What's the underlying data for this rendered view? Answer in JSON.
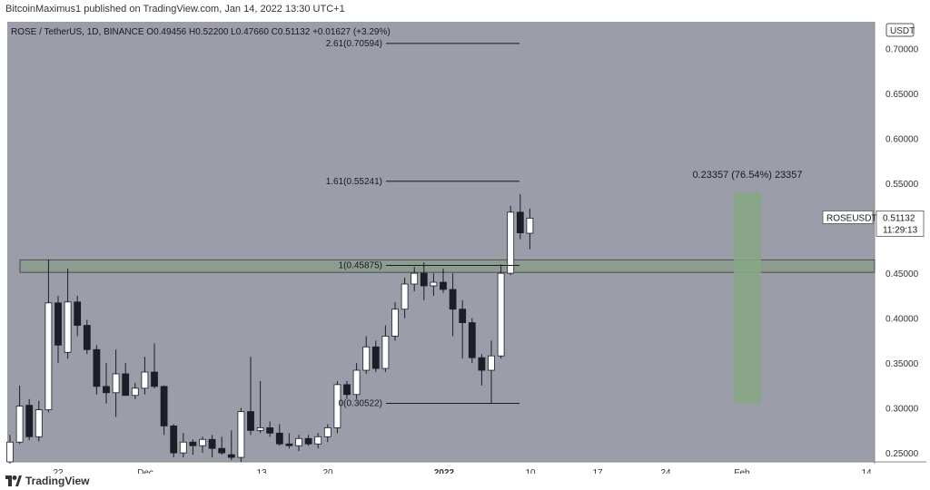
{
  "header": {
    "publisher_line": "BitcoinMaximus1 published on TradingView.com, Jan 14, 2022 13:30 UTC+1"
  },
  "footer": {
    "brand": "TradingView",
    "logo_icon": "tradingview-logo-icon"
  },
  "colors": {
    "background": "#9b9da8",
    "up": "#ffffff",
    "down": "#1b1d27",
    "zone": "#7f9a7c",
    "box": "#86a983"
  },
  "chart_data": {
    "type": "candlestick",
    "symbol_line": {
      "symbol": "ROSE / TetherUS, 1D, BINANCE",
      "o_label": "O",
      "o": "0.49456",
      "h_label": "H",
      "h": "0.52200",
      "l_label": "L",
      "l": "0.47660",
      "c_label": "C",
      "c": "0.51132",
      "change": "+0.01627 (+3.29%)"
    },
    "currency": "USDT",
    "ylim": [
      0.24,
      0.73
    ],
    "y_ticks": [
      "0.70000",
      "0.65000",
      "0.60000",
      "0.55000",
      "0.50000",
      "0.45000",
      "0.40000",
      "0.35000",
      "0.30000",
      "0.25000"
    ],
    "x_ticks": [
      "22",
      "Dec",
      "13",
      "20",
      "2022",
      "10",
      "17",
      "24",
      "Feb",
      "14"
    ],
    "last_price": {
      "label": "ROSEUSDT",
      "value": "0.51132",
      "timer": "11:29:13"
    },
    "fib_levels": [
      {
        "label": "2.61(0.70594)",
        "value": 0.70594
      },
      {
        "label": "1.61(0.55241)",
        "value": 0.55241
      },
      {
        "label": "1(0.45875)",
        "value": 0.45875
      },
      {
        "label": "0(0.30522)",
        "value": 0.30522
      }
    ],
    "resistance_zone": [
      0.451,
      0.465
    ],
    "measure": {
      "label": "0.23357 (76.54%) 23357",
      "low": 0.305,
      "high": 0.54
    },
    "candles": [
      {
        "o": 0.24,
        "h": 0.27,
        "l": 0.238,
        "c": 0.262
      },
      {
        "o": 0.262,
        "h": 0.325,
        "l": 0.26,
        "c": 0.302
      },
      {
        "o": 0.303,
        "h": 0.31,
        "l": 0.264,
        "c": 0.268
      },
      {
        "o": 0.268,
        "h": 0.308,
        "l": 0.263,
        "c": 0.298
      },
      {
        "o": 0.298,
        "h": 0.465,
        "l": 0.295,
        "c": 0.417
      },
      {
        "o": 0.417,
        "h": 0.425,
        "l": 0.35,
        "c": 0.37
      },
      {
        "o": 0.362,
        "h": 0.455,
        "l": 0.355,
        "c": 0.418
      },
      {
        "o": 0.418,
        "h": 0.425,
        "l": 0.38,
        "c": 0.392
      },
      {
        "o": 0.392,
        "h": 0.398,
        "l": 0.36,
        "c": 0.365
      },
      {
        "o": 0.365,
        "h": 0.37,
        "l": 0.315,
        "c": 0.324
      },
      {
        "o": 0.324,
        "h": 0.35,
        "l": 0.305,
        "c": 0.317
      },
      {
        "o": 0.317,
        "h": 0.365,
        "l": 0.29,
        "c": 0.338
      },
      {
        "o": 0.338,
        "h": 0.35,
        "l": 0.315,
        "c": 0.314
      },
      {
        "o": 0.314,
        "h": 0.328,
        "l": 0.31,
        "c": 0.322
      },
      {
        "o": 0.322,
        "h": 0.357,
        "l": 0.315,
        "c": 0.34
      },
      {
        "o": 0.34,
        "h": 0.372,
        "l": 0.322,
        "c": 0.324
      },
      {
        "o": 0.324,
        "h": 0.325,
        "l": 0.27,
        "c": 0.28
      },
      {
        "o": 0.28,
        "h": 0.282,
        "l": 0.245,
        "c": 0.25
      },
      {
        "o": 0.25,
        "h": 0.272,
        "l": 0.245,
        "c": 0.262
      },
      {
        "o": 0.262,
        "h": 0.265,
        "l": 0.248,
        "c": 0.258
      },
      {
        "o": 0.258,
        "h": 0.268,
        "l": 0.25,
        "c": 0.265
      },
      {
        "o": 0.265,
        "h": 0.27,
        "l": 0.245,
        "c": 0.255
      },
      {
        "o": 0.255,
        "h": 0.268,
        "l": 0.248,
        "c": 0.25
      },
      {
        "o": 0.248,
        "h": 0.275,
        "l": 0.242,
        "c": 0.245
      },
      {
        "o": 0.245,
        "h": 0.3,
        "l": 0.24,
        "c": 0.296
      },
      {
        "o": 0.296,
        "h": 0.357,
        "l": 0.27,
        "c": 0.275
      },
      {
        "o": 0.275,
        "h": 0.33,
        "l": 0.272,
        "c": 0.278
      },
      {
        "o": 0.278,
        "h": 0.285,
        "l": 0.268,
        "c": 0.272
      },
      {
        "o": 0.272,
        "h": 0.282,
        "l": 0.258,
        "c": 0.26
      },
      {
        "o": 0.26,
        "h": 0.272,
        "l": 0.255,
        "c": 0.258
      },
      {
        "o": 0.258,
        "h": 0.27,
        "l": 0.252,
        "c": 0.266
      },
      {
        "o": 0.266,
        "h": 0.27,
        "l": 0.258,
        "c": 0.26
      },
      {
        "o": 0.26,
        "h": 0.272,
        "l": 0.255,
        "c": 0.268
      },
      {
        "o": 0.268,
        "h": 0.282,
        "l": 0.262,
        "c": 0.278
      },
      {
        "o": 0.278,
        "h": 0.33,
        "l": 0.272,
        "c": 0.326
      },
      {
        "o": 0.326,
        "h": 0.33,
        "l": 0.31,
        "c": 0.315
      },
      {
        "o": 0.315,
        "h": 0.35,
        "l": 0.31,
        "c": 0.342
      },
      {
        "o": 0.342,
        "h": 0.38,
        "l": 0.338,
        "c": 0.368
      },
      {
        "o": 0.368,
        "h": 0.375,
        "l": 0.34,
        "c": 0.344
      },
      {
        "o": 0.344,
        "h": 0.392,
        "l": 0.34,
        "c": 0.38
      },
      {
        "o": 0.38,
        "h": 0.418,
        "l": 0.375,
        "c": 0.41
      },
      {
        "o": 0.41,
        "h": 0.445,
        "l": 0.4,
        "c": 0.438
      },
      {
        "o": 0.438,
        "h": 0.457,
        "l": 0.43,
        "c": 0.45
      },
      {
        "o": 0.45,
        "h": 0.462,
        "l": 0.42,
        "c": 0.436
      },
      {
        "o": 0.436,
        "h": 0.45,
        "l": 0.425,
        "c": 0.44
      },
      {
        "o": 0.44,
        "h": 0.455,
        "l": 0.428,
        "c": 0.432
      },
      {
        "o": 0.432,
        "h": 0.45,
        "l": 0.38,
        "c": 0.41
      },
      {
        "o": 0.41,
        "h": 0.42,
        "l": 0.355,
        "c": 0.395
      },
      {
        "o": 0.395,
        "h": 0.4,
        "l": 0.35,
        "c": 0.356
      },
      {
        "o": 0.356,
        "h": 0.36,
        "l": 0.325,
        "c": 0.342
      },
      {
        "o": 0.342,
        "h": 0.375,
        "l": 0.305,
        "c": 0.358
      },
      {
        "o": 0.358,
        "h": 0.46,
        "l": 0.355,
        "c": 0.45
      },
      {
        "o": 0.45,
        "h": 0.525,
        "l": 0.448,
        "c": 0.518
      },
      {
        "o": 0.518,
        "h": 0.538,
        "l": 0.488,
        "c": 0.495
      },
      {
        "o": 0.49456,
        "h": 0.522,
        "l": 0.4766,
        "c": 0.51132
      }
    ]
  }
}
